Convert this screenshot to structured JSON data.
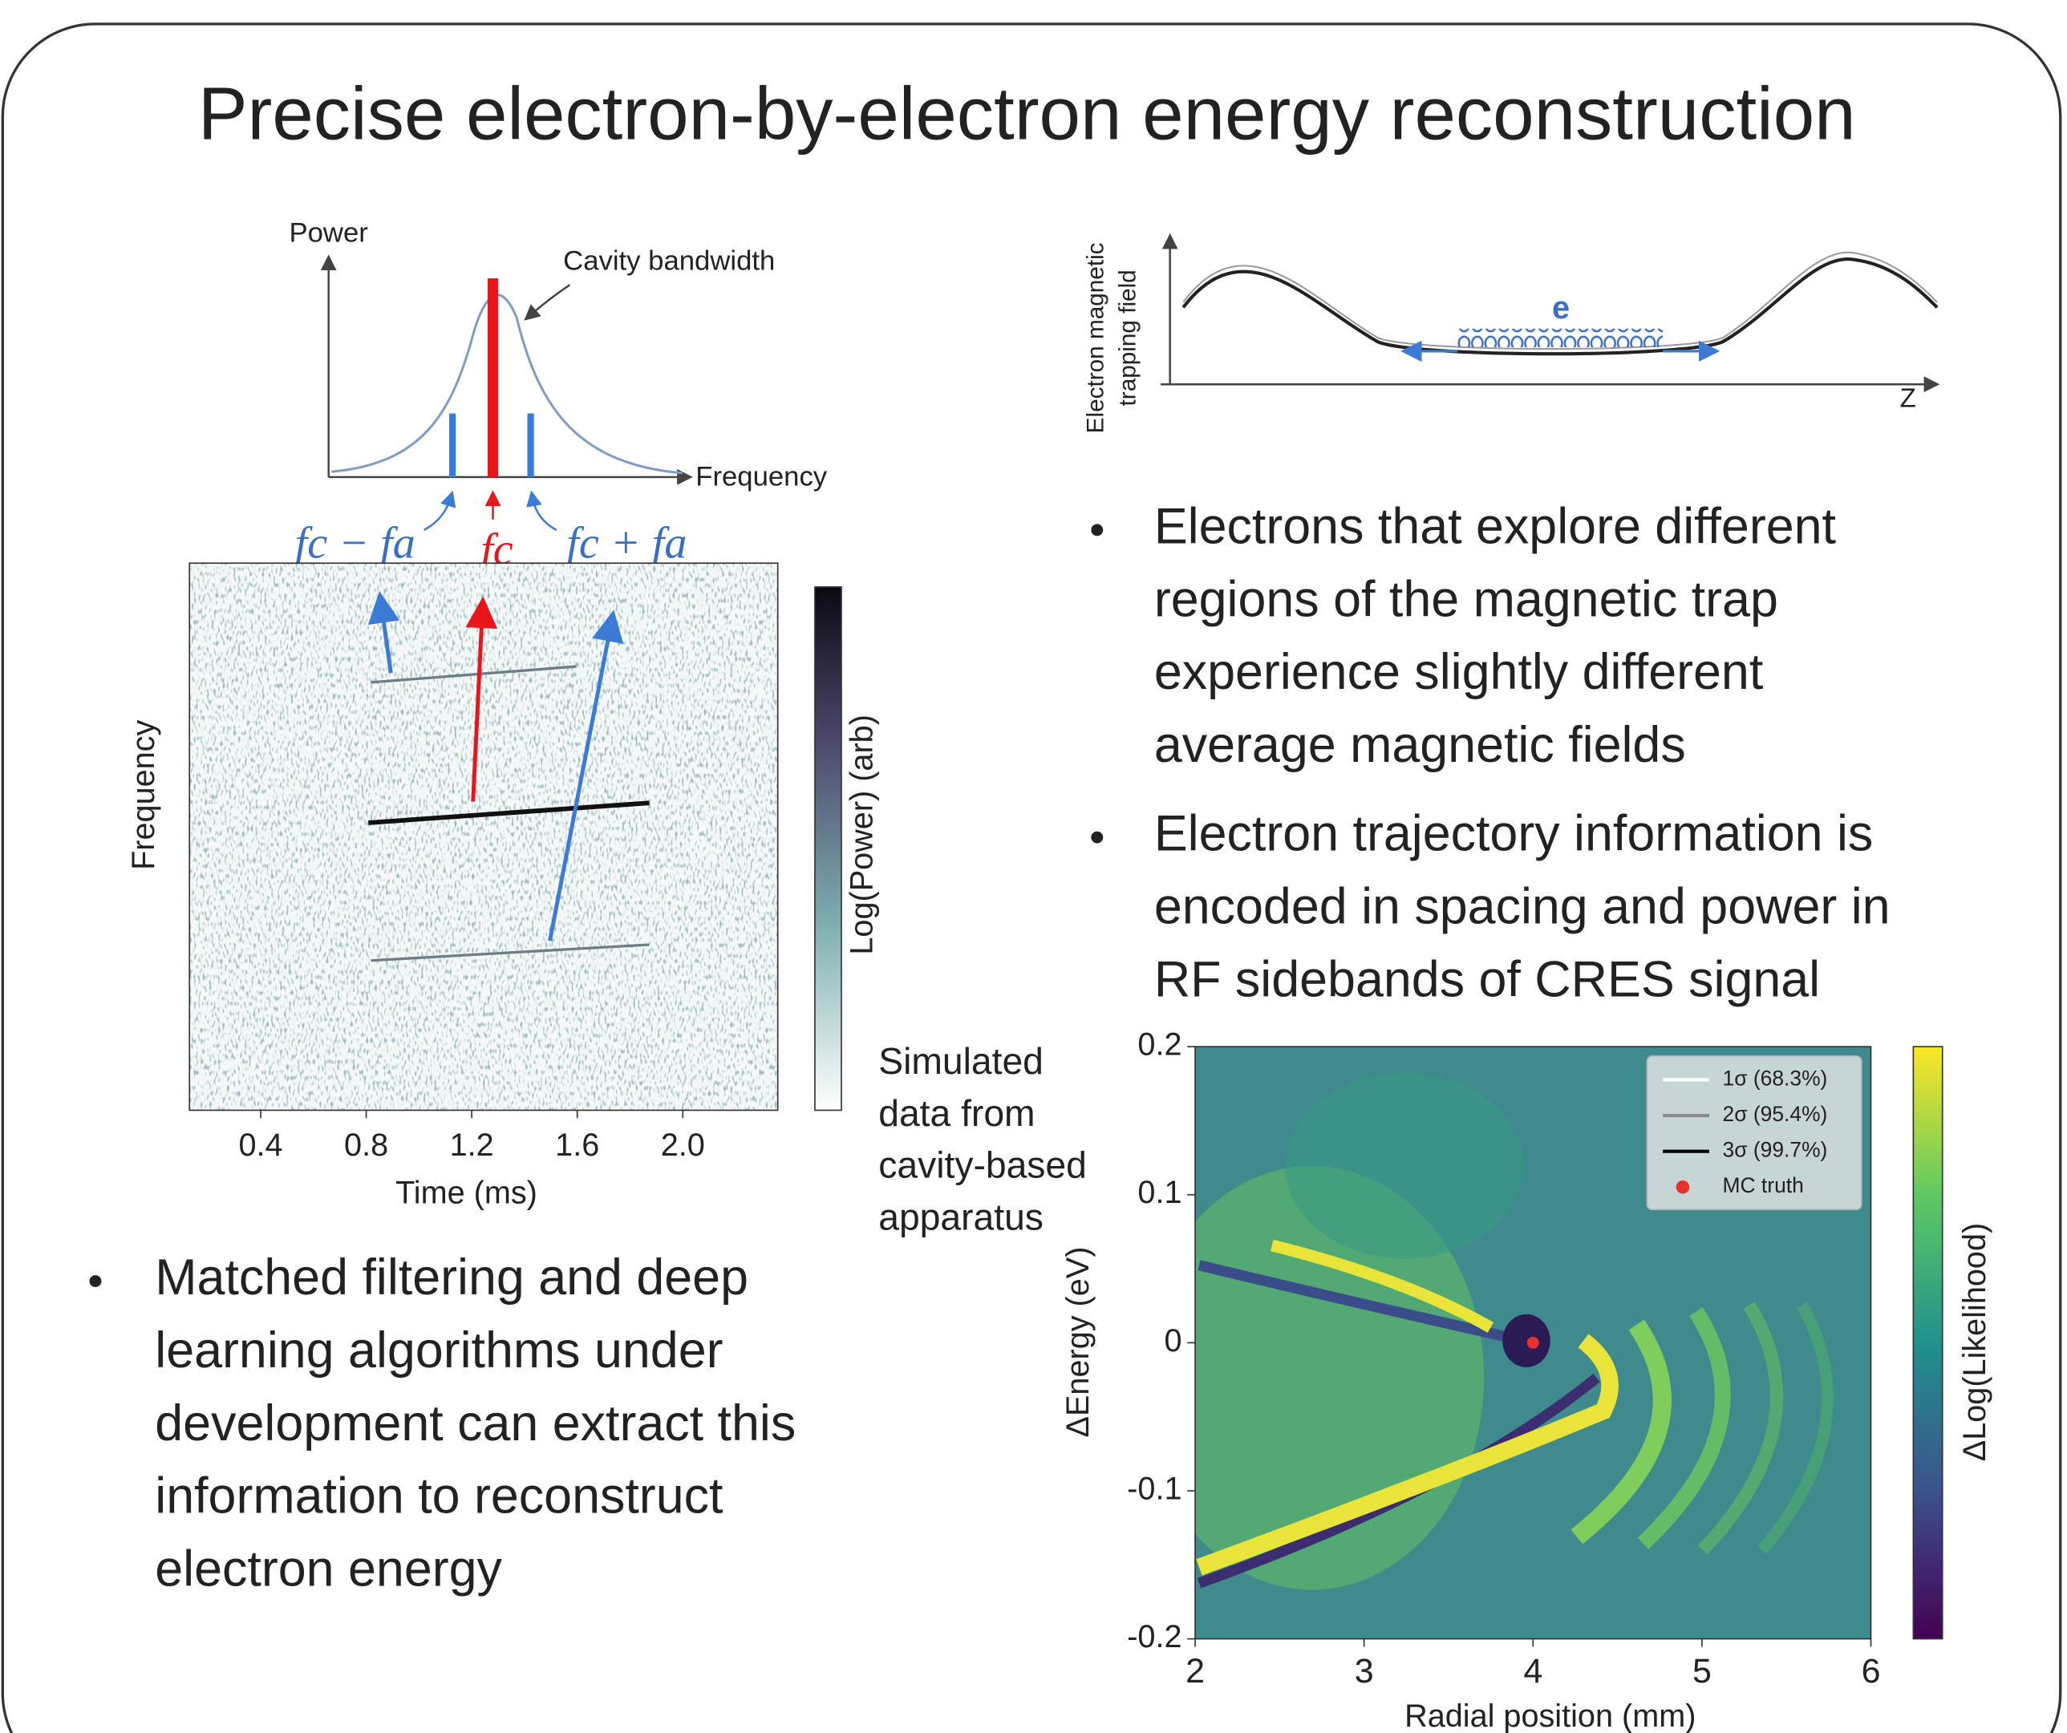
{
  "title": "Precise electron-by-electron energy reconstruction",
  "power_diagram": {
    "y_label": "Power",
    "x_label": "Frequency",
    "annotation": "Cavity bandwidth",
    "sidebands": [
      "fc − fa",
      "fc",
      "fc + fa"
    ]
  },
  "trap_diagram": {
    "y_label": [
      "Electron magnetic",
      "trapping field"
    ],
    "particle": "e",
    "x_label": "Z"
  },
  "bullets_right": [
    [
      "Electrons that explore different",
      "regions of the magnetic trap",
      "experience slightly different",
      "average magnetic fields"
    ],
    [
      "Electron trajectory information is",
      "encoded in spacing and power in",
      "RF sidebands of CRES signal"
    ]
  ],
  "caption": [
    "Simulated",
    "data from",
    "cavity-based",
    "apparatus"
  ],
  "bullets_left": [
    [
      "Matched filtering and deep",
      "learning algorithms under",
      "development can extract this",
      "information to reconstruct",
      "electron energy"
    ]
  ],
  "chart_data": [
    {
      "type": "heatmap",
      "x_label": "Time (ms)",
      "y_label": "Frequency",
      "colorbar_label": "Log(Power) (arb)",
      "xlim": [
        0.13,
        2.36
      ],
      "xticks": [
        0.4,
        0.8,
        1.2,
        1.6,
        {
          "value": 2,
          "label": "2.0"
        }
      ]
    },
    {
      "type": "heatmap",
      "x_label": "Radial position (mm)",
      "y_label": "ΔEnergy (eV)",
      "colorbar_label": "ΔLog(Likelihood)",
      "xlim": [
        2,
        6
      ],
      "ylim": [
        -0.2,
        0.2
      ],
      "xticks": [
        2,
        3,
        4,
        5,
        6
      ],
      "yticks": [
        -0.2,
        -0.1,
        0,
        0.1,
        0.2
      ],
      "legend": "upper right",
      "series": [
        {
          "name": "1σ (68.3%)",
          "color": "#ffffff"
        },
        {
          "name": "2σ (95.4%)",
          "color": "#8a8a8a"
        },
        {
          "name": "3σ (99.7%)",
          "color": "#000000"
        },
        {
          "name": "MC truth",
          "color": "#e8312a",
          "x": [
            4
          ],
          "values": [
            0
          ]
        }
      ]
    }
  ]
}
